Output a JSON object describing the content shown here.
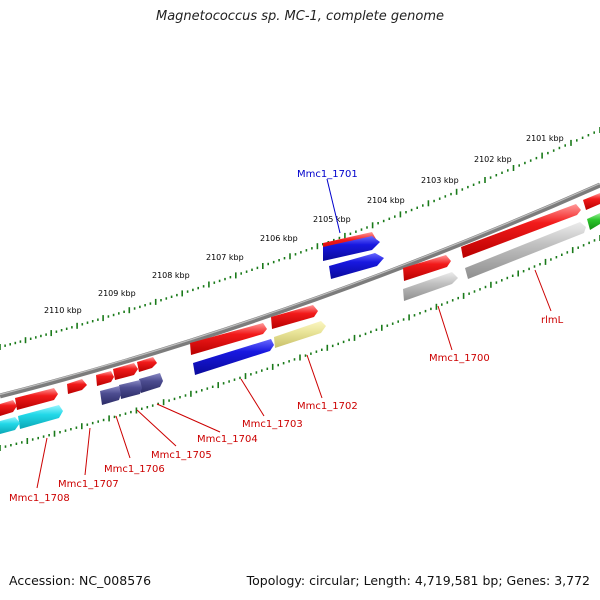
{
  "title": "Magnetococcus sp. MC-1, complete genome",
  "footer": {
    "accession": "Accession: NC_008576",
    "summary": "Topology: circular; Length: 4,719,581 bp; Genes: 3,772"
  },
  "ticks": [
    "2101 kbp",
    "2102 kbp",
    "2103 kbp",
    "2104 kbp",
    "2105 kbp",
    "2106 kbp",
    "2107 kbp",
    "2108 kbp",
    "2109 kbp",
    "2110 kbp"
  ],
  "gene_labels": [
    "Mmc1_1701",
    "rlmL",
    "Mmc1_1700",
    "Mmc1_1702",
    "Mmc1_1703",
    "Mmc1_1704",
    "Mmc1_1705",
    "Mmc1_1706",
    "Mmc1_1707",
    "Mmc1_1708"
  ],
  "colors": {
    "backbone": "#808080",
    "tick": "#1a7a1a",
    "gene_red": "#e21212",
    "cds_blue": "#1414d0",
    "cds_gray": "#b4b4b4",
    "cds_yellow": "#ece79a",
    "cds_slate": "#4a4a8e",
    "cds_cyan": "#1ed6e6",
    "cds_green": "#2cc62c",
    "label_red": "#cc0000",
    "label_blue": "#0000cc"
  }
}
